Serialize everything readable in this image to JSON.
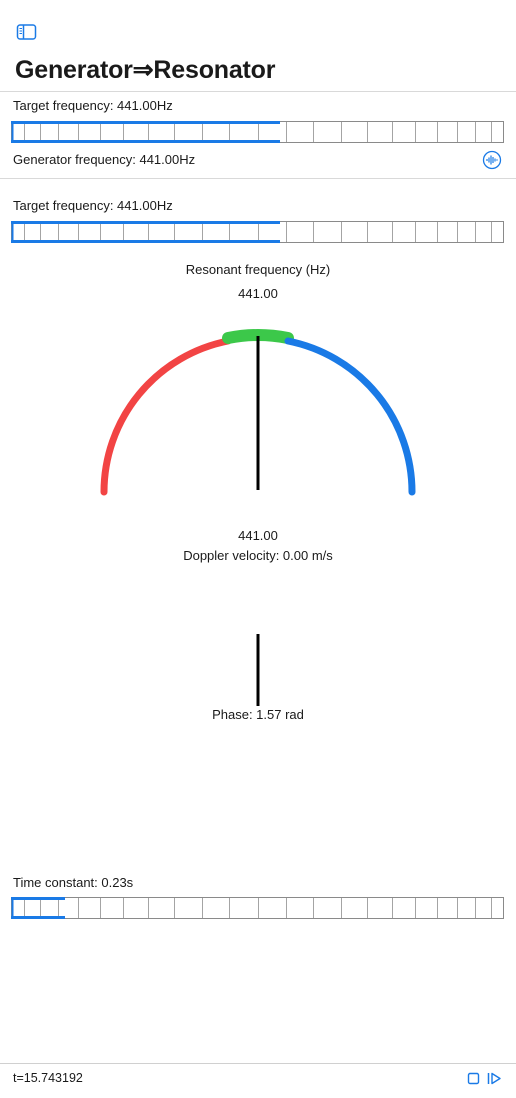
{
  "header": {
    "title": "Generator⇒Resonator",
    "sidebar_icon": "sidebar-toggle-icon"
  },
  "generator": {
    "target_label": "Target frequency: 441.00Hz",
    "slider_fraction": 0.545,
    "frequency_label": "Generator frequency: 441.00Hz",
    "audio_icon": "waveform-circle-icon"
  },
  "resonator": {
    "target_label": "Target frequency: 441.00Hz",
    "slider_fraction": 0.545,
    "gauge_title": "Resonant frequency (Hz)",
    "gauge_value_top": "441.00",
    "gauge_value_bottom": "441.00",
    "doppler_label": "Doppler velocity: 0.00 m/s",
    "phase_label": "Phase: 1.57 rad",
    "time_constant_label": "Time constant: 0.23s",
    "time_constant_fraction": 0.11
  },
  "colors": {
    "accent": "#1a7ae6",
    "low": "#f24444",
    "center": "#3cc84a",
    "high": "#1a7ae6",
    "needle": "#000000"
  },
  "footer": {
    "time": "t=15.743192",
    "stop_icon": "stop-icon",
    "step_icon": "step-forward-icon"
  }
}
